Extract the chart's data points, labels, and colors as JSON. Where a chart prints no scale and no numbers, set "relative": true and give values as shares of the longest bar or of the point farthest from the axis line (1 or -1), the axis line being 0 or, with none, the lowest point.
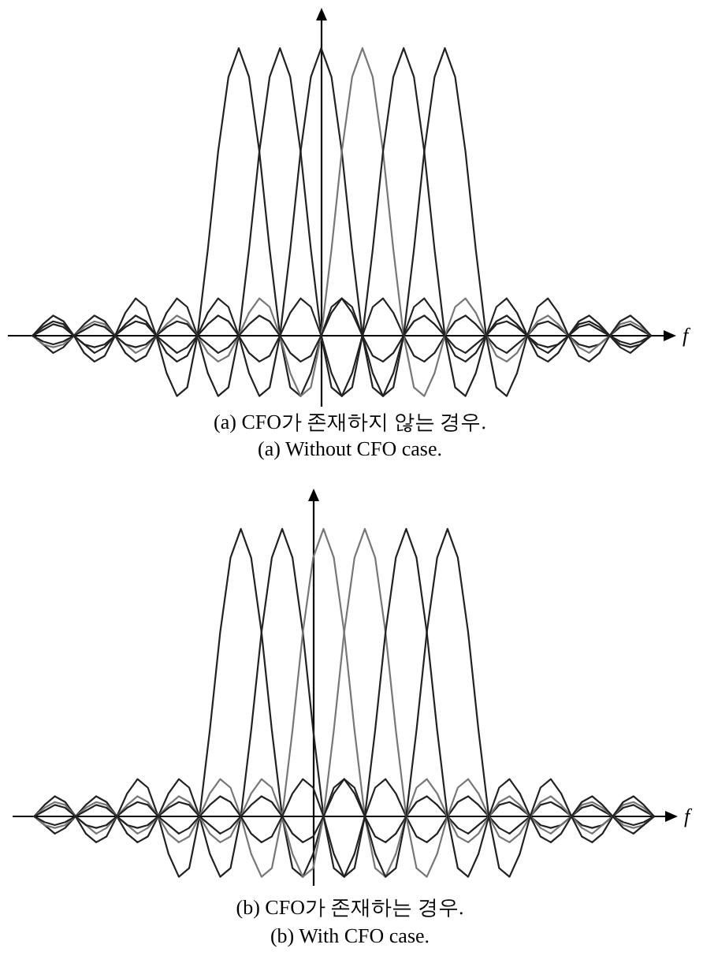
{
  "chart_data": [
    {
      "type": "line",
      "title": "(a) CFO가 존재하지 않는 경우.",
      "subtitle": "(a) Without CFO case.",
      "xlabel": "f",
      "relative": true,
      "categories": [
        null,
        null,
        null,
        null,
        null,
        null,
        null,
        null,
        null,
        null,
        null,
        null,
        null,
        null,
        null,
        null,
        null,
        null,
        null,
        null,
        null,
        null,
        null,
        null,
        null,
        null,
        null,
        null,
        null,
        null,
        null,
        null,
        null,
        null,
        null,
        null,
        null,
        null,
        null,
        null,
        null,
        null,
        null,
        null,
        null,
        null,
        null,
        null,
        null,
        null,
        null,
        null,
        null,
        null,
        null,
        null,
        null,
        null,
        null,
        null,
        null
      ],
      "series": [
        {
          "color": "#222222",
          "values": [
            0,
            0.04,
            0.07,
            0.05,
            0,
            -0.06,
            -0.09,
            -0.07,
            0,
            0.08,
            0.13,
            0.1,
            0,
            -0.13,
            -0.21,
            -0.18,
            0,
            0.3,
            0.64,
            0.9,
            1,
            0.9,
            0.64,
            0.3,
            0,
            -0.18,
            -0.21,
            -0.13,
            0,
            0.1,
            0.13,
            0.08,
            0,
            -0.07,
            -0.09,
            -0.06,
            0,
            0.05,
            0.07,
            0.04,
            0,
            -0.04,
            -0.06,
            -0.03,
            0,
            0.04,
            0.05,
            0.03,
            0,
            -0.03,
            -0.04,
            -0.03,
            0,
            0.03,
            0.04,
            0.02,
            0,
            -0.02,
            -0.03,
            -0.02,
            0
          ]
        },
        {
          "color": "#222222",
          "values": [
            0,
            -0.03,
            -0.06,
            -0.04,
            0,
            0.04,
            0.07,
            0.05,
            0,
            -0.06,
            -0.09,
            -0.07,
            0,
            0.08,
            0.13,
            0.1,
            0,
            -0.13,
            -0.21,
            -0.18,
            0,
            0.3,
            0.64,
            0.9,
            1,
            0.9,
            0.64,
            0.3,
            0,
            -0.18,
            -0.21,
            -0.13,
            0,
            0.1,
            0.13,
            0.08,
            0,
            -0.07,
            -0.09,
            -0.06,
            0,
            0.05,
            0.07,
            0.04,
            0,
            -0.04,
            -0.06,
            -0.03,
            0,
            0.04,
            0.05,
            0.03,
            0,
            -0.03,
            -0.04,
            -0.03,
            0,
            0.03,
            0.04,
            0.02,
            0
          ]
        },
        {
          "color": "#222222",
          "values": [
            0,
            0.03,
            0.05,
            0.04,
            0,
            -0.03,
            -0.06,
            -0.04,
            0,
            0.04,
            0.07,
            0.05,
            0,
            -0.06,
            -0.09,
            -0.07,
            0,
            0.08,
            0.13,
            0.1,
            0,
            -0.13,
            -0.21,
            -0.18,
            0,
            0.3,
            0.64,
            0.9,
            1,
            0.9,
            0.64,
            0.3,
            0,
            -0.18,
            -0.21,
            -0.13,
            0,
            0.1,
            0.13,
            0.08,
            0,
            -0.07,
            -0.09,
            -0.06,
            0,
            0.05,
            0.07,
            0.04,
            0,
            -0.04,
            -0.06,
            -0.03,
            0,
            0.04,
            0.05,
            0.03,
            0,
            -0.03,
            -0.04,
            -0.03,
            0
          ]
        },
        {
          "color": "#777777",
          "values": [
            0,
            -0.03,
            -0.04,
            -0.03,
            0,
            0.03,
            0.05,
            0.04,
            0,
            -0.03,
            -0.06,
            -0.04,
            0,
            0.04,
            0.07,
            0.05,
            0,
            -0.06,
            -0.09,
            -0.07,
            0,
            0.08,
            0.13,
            0.1,
            0,
            -0.13,
            -0.21,
            -0.18,
            0,
            0.3,
            0.64,
            0.9,
            1,
            0.9,
            0.64,
            0.3,
            0,
            -0.18,
            -0.21,
            -0.13,
            0,
            0.1,
            0.13,
            0.08,
            0,
            -0.07,
            -0.09,
            -0.06,
            0,
            0.05,
            0.07,
            0.04,
            0,
            -0.04,
            -0.06,
            -0.03,
            0,
            0.04,
            0.05,
            0.03,
            0
          ]
        },
        {
          "color": "#222222",
          "values": [
            0,
            0.02,
            0.04,
            0.03,
            0,
            -0.03,
            -0.04,
            -0.03,
            0,
            0.03,
            0.05,
            0.04,
            0,
            -0.03,
            -0.06,
            -0.04,
            0,
            0.04,
            0.07,
            0.05,
            0,
            -0.06,
            -0.09,
            -0.07,
            0,
            0.08,
            0.13,
            0.1,
            0,
            -0.13,
            -0.21,
            -0.18,
            0,
            0.3,
            0.64,
            0.9,
            1,
            0.9,
            0.64,
            0.3,
            0,
            -0.18,
            -0.21,
            -0.13,
            0,
            0.1,
            0.13,
            0.08,
            0,
            -0.07,
            -0.09,
            -0.06,
            0,
            0.05,
            0.07,
            0.04,
            0,
            -0.04,
            -0.06,
            -0.03,
            0
          ]
        },
        {
          "color": "#222222",
          "values": [
            0,
            -0.02,
            -0.03,
            -0.02,
            0,
            0.02,
            0.04,
            0.03,
            0,
            -0.03,
            -0.04,
            -0.03,
            0,
            0.03,
            0.05,
            0.04,
            0,
            -0.03,
            -0.06,
            -0.04,
            0,
            0.04,
            0.07,
            0.05,
            0,
            -0.06,
            -0.09,
            -0.07,
            0,
            0.08,
            0.13,
            0.1,
            0,
            -0.13,
            -0.21,
            -0.18,
            0,
            0.3,
            0.64,
            0.9,
            1,
            0.9,
            0.64,
            0.3,
            0,
            -0.18,
            -0.21,
            -0.13,
            0,
            0.1,
            0.13,
            0.08,
            0,
            -0.07,
            -0.09,
            -0.06,
            0,
            0.05,
            0.07,
            0.04,
            0
          ]
        }
      ]
    },
    {
      "type": "line",
      "title": "(b) CFO가 존재하는 경우.",
      "subtitle": "(b) With CFO case.",
      "xlabel": "f",
      "relative": true,
      "categories": [
        null,
        null,
        null,
        null,
        null,
        null,
        null,
        null,
        null,
        null,
        null,
        null,
        null,
        null,
        null,
        null,
        null,
        null,
        null,
        null,
        null,
        null,
        null,
        null,
        null,
        null,
        null,
        null,
        null,
        null,
        null,
        null,
        null,
        null,
        null,
        null,
        null,
        null,
        null,
        null,
        null,
        null,
        null,
        null,
        null,
        null,
        null,
        null,
        null,
        null,
        null,
        null,
        null,
        null,
        null,
        null,
        null,
        null,
        null,
        null,
        null
      ],
      "series": [
        {
          "color": "#222222",
          "values": [
            0,
            0.04,
            0.07,
            0.05,
            0,
            -0.06,
            -0.09,
            -0.07,
            0,
            0.08,
            0.13,
            0.1,
            0,
            -0.13,
            -0.21,
            -0.18,
            0,
            0.3,
            0.64,
            0.9,
            1,
            0.9,
            0.64,
            0.3,
            0,
            -0.18,
            -0.21,
            -0.13,
            0,
            0.1,
            0.13,
            0.08,
            0,
            -0.07,
            -0.09,
            -0.06,
            0,
            0.05,
            0.07,
            0.04,
            0,
            -0.04,
            -0.06,
            -0.03,
            0,
            0.04,
            0.05,
            0.03,
            0,
            -0.03,
            -0.04,
            -0.03,
            0,
            0.03,
            0.04,
            0.02,
            0,
            -0.02,
            -0.03,
            -0.02,
            0
          ]
        },
        {
          "color": "#222222",
          "values": [
            0,
            -0.03,
            -0.06,
            -0.04,
            0,
            0.04,
            0.07,
            0.05,
            0,
            -0.06,
            -0.09,
            -0.07,
            0,
            0.08,
            0.13,
            0.1,
            0,
            -0.13,
            -0.21,
            -0.18,
            0,
            0.3,
            0.64,
            0.9,
            1,
            0.9,
            0.64,
            0.3,
            0,
            -0.18,
            -0.21,
            -0.13,
            0,
            0.1,
            0.13,
            0.08,
            0,
            -0.07,
            -0.09,
            -0.06,
            0,
            0.05,
            0.07,
            0.04,
            0,
            -0.04,
            -0.06,
            -0.03,
            0,
            0.04,
            0.05,
            0.03,
            0,
            -0.03,
            -0.04,
            -0.03,
            0,
            0.03,
            0.04,
            0.02,
            0
          ]
        },
        {
          "color": "#777777",
          "values": [
            0,
            0.03,
            0.05,
            0.04,
            0,
            -0.03,
            -0.06,
            -0.04,
            0,
            0.04,
            0.07,
            0.05,
            0,
            -0.06,
            -0.09,
            -0.07,
            0,
            0.08,
            0.13,
            0.1,
            0,
            -0.13,
            -0.21,
            -0.18,
            0,
            0.3,
            0.64,
            0.9,
            1,
            0.9,
            0.64,
            0.3,
            0,
            -0.18,
            -0.21,
            -0.13,
            0,
            0.1,
            0.13,
            0.08,
            0,
            -0.07,
            -0.09,
            -0.06,
            0,
            0.05,
            0.07,
            0.04,
            0,
            -0.04,
            -0.06,
            -0.03,
            0,
            0.04,
            0.05,
            0.03,
            0,
            -0.03,
            -0.04,
            -0.03,
            0
          ]
        },
        {
          "color": "#777777",
          "values": [
            0,
            -0.03,
            -0.04,
            -0.03,
            0,
            0.03,
            0.05,
            0.04,
            0,
            -0.03,
            -0.06,
            -0.04,
            0,
            0.04,
            0.07,
            0.05,
            0,
            -0.06,
            -0.09,
            -0.07,
            0,
            0.08,
            0.13,
            0.1,
            0,
            -0.13,
            -0.21,
            -0.18,
            0,
            0.3,
            0.64,
            0.9,
            1,
            0.9,
            0.64,
            0.3,
            0,
            -0.18,
            -0.21,
            -0.13,
            0,
            0.1,
            0.13,
            0.08,
            0,
            -0.07,
            -0.09,
            -0.06,
            0,
            0.05,
            0.07,
            0.04,
            0,
            -0.04,
            -0.06,
            -0.03,
            0,
            0.04,
            0.05,
            0.03,
            0
          ]
        },
        {
          "color": "#222222",
          "values": [
            0,
            0.02,
            0.04,
            0.03,
            0,
            -0.03,
            -0.04,
            -0.03,
            0,
            0.03,
            0.05,
            0.04,
            0,
            -0.03,
            -0.06,
            -0.04,
            0,
            0.04,
            0.07,
            0.05,
            0,
            -0.06,
            -0.09,
            -0.07,
            0,
            0.08,
            0.13,
            0.1,
            0,
            -0.13,
            -0.21,
            -0.18,
            0,
            0.3,
            0.64,
            0.9,
            1,
            0.9,
            0.64,
            0.3,
            0,
            -0.18,
            -0.21,
            -0.13,
            0,
            0.1,
            0.13,
            0.08,
            0,
            -0.07,
            -0.09,
            -0.06,
            0,
            0.05,
            0.07,
            0.04,
            0,
            -0.04,
            -0.06,
            -0.03,
            0
          ]
        },
        {
          "color": "#222222",
          "values": [
            0,
            -0.02,
            -0.03,
            -0.02,
            0,
            0.02,
            0.04,
            0.03,
            0,
            -0.03,
            -0.04,
            -0.03,
            0,
            0.03,
            0.05,
            0.04,
            0,
            -0.03,
            -0.06,
            -0.04,
            0,
            0.04,
            0.07,
            0.05,
            0,
            -0.06,
            -0.09,
            -0.07,
            0,
            0.08,
            0.13,
            0.1,
            0,
            -0.13,
            -0.21,
            -0.18,
            0,
            0.3,
            0.64,
            0.9,
            1,
            0.9,
            0.64,
            0.3,
            0,
            -0.18,
            -0.21,
            -0.13,
            0,
            0.1,
            0.13,
            0.08,
            0,
            -0.07,
            -0.09,
            -0.06,
            0,
            0.05,
            0.07,
            0.04,
            0
          ]
        }
      ]
    }
  ]
}
